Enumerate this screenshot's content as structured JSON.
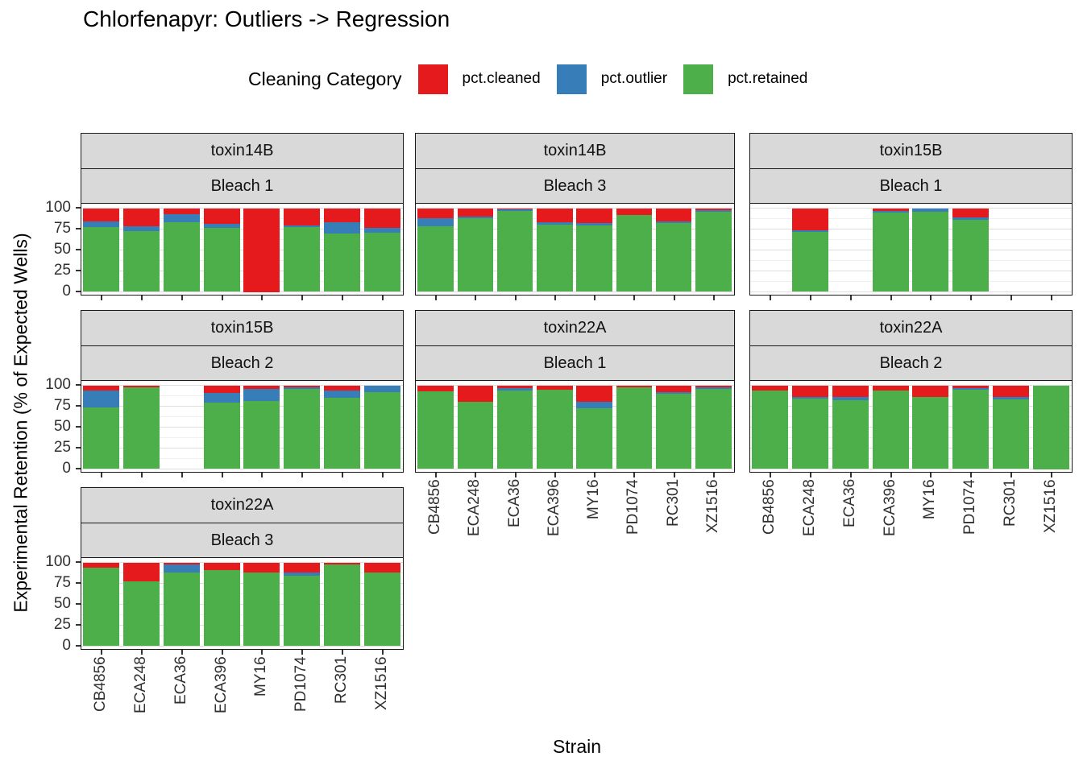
{
  "title": "Chlorfenapyr: Outliers -> Regression",
  "legend": {
    "title": "Cleaning Category",
    "items": [
      {
        "label": "pct.cleaned",
        "color": "#E41A1C",
        "key": "cleaned"
      },
      {
        "label": "pct.outlier",
        "color": "#377EB8",
        "key": "outlier"
      },
      {
        "label": "pct.retained",
        "color": "#4DAF4A",
        "key": "retained"
      }
    ]
  },
  "axes": {
    "x_title": "Strain",
    "y_title": "Experimental Retention (% of Expected Wells)",
    "y_ticks": [
      100,
      75,
      50,
      25,
      0
    ],
    "y_range": [
      0,
      100
    ]
  },
  "chart_data": {
    "type": "bar",
    "stacked": true,
    "legend_position": "top",
    "grid": true,
    "categories": [
      "CB4856",
      "ECA248",
      "ECA36",
      "ECA396",
      "MY16",
      "PD1074",
      "RC301",
      "XZ1516"
    ],
    "facets": [
      {
        "toxin": "toxin14B",
        "bleach": "Bleach 1",
        "row": 0,
        "col": 0,
        "show_y_axis": true,
        "show_x_axis": false,
        "values": [
          {
            "cleaned": 16,
            "outlier": 7,
            "retained": 77
          },
          {
            "cleaned": 22,
            "outlier": 5,
            "retained": 73
          },
          {
            "cleaned": 7,
            "outlier": 10,
            "retained": 83
          },
          {
            "cleaned": 19,
            "outlier": 5,
            "retained": 76
          },
          {
            "cleaned": 100,
            "outlier": 0,
            "retained": 0
          },
          {
            "cleaned": 21,
            "outlier": 2,
            "retained": 77
          },
          {
            "cleaned": 17,
            "outlier": 13,
            "retained": 70
          },
          {
            "cleaned": 24,
            "outlier": 5,
            "retained": 71
          }
        ]
      },
      {
        "toxin": "toxin14B",
        "bleach": "Bleach 3",
        "row": 0,
        "col": 1,
        "show_y_axis": false,
        "show_x_axis": false,
        "values": [
          {
            "cleaned": 12,
            "outlier": 10,
            "retained": 78
          },
          {
            "cleaned": 10,
            "outlier": 2,
            "retained": 88
          },
          {
            "cleaned": 1,
            "outlier": 2,
            "retained": 97
          },
          {
            "cleaned": 17,
            "outlier": 3,
            "retained": 80
          },
          {
            "cleaned": 18,
            "outlier": 3,
            "retained": 79
          },
          {
            "cleaned": 8,
            "outlier": 0,
            "retained": 92
          },
          {
            "cleaned": 16,
            "outlier": 2,
            "retained": 82
          },
          {
            "cleaned": 2,
            "outlier": 2,
            "retained": 96
          }
        ]
      },
      {
        "toxin": "toxin15B",
        "bleach": "Bleach 1",
        "row": 0,
        "col": 2,
        "show_y_axis": false,
        "show_x_axis": false,
        "values": [
          null,
          {
            "cleaned": 26,
            "outlier": 2,
            "retained": 72
          },
          null,
          {
            "cleaned": 3,
            "outlier": 2,
            "retained": 95
          },
          {
            "cleaned": 0,
            "outlier": 4,
            "retained": 96
          },
          {
            "cleaned": 11,
            "outlier": 3,
            "retained": 86
          },
          null,
          null
        ]
      },
      {
        "toxin": "toxin15B",
        "bleach": "Bleach 2",
        "row": 1,
        "col": 0,
        "show_y_axis": true,
        "show_x_axis": false,
        "values": [
          {
            "cleaned": 6,
            "outlier": 20,
            "retained": 74
          },
          {
            "cleaned": 2,
            "outlier": 0,
            "retained": 98
          },
          null,
          {
            "cleaned": 9,
            "outlier": 12,
            "retained": 79
          },
          {
            "cleaned": 4,
            "outlier": 15,
            "retained": 81
          },
          {
            "cleaned": 2,
            "outlier": 2,
            "retained": 96
          },
          {
            "cleaned": 6,
            "outlier": 9,
            "retained": 85
          },
          {
            "cleaned": 0,
            "outlier": 8,
            "retained": 92
          }
        ]
      },
      {
        "toxin": "toxin22A",
        "bleach": "Bleach 1",
        "row": 1,
        "col": 1,
        "show_y_axis": false,
        "show_x_axis": true,
        "values": [
          {
            "cleaned": 7,
            "outlier": 0,
            "retained": 93
          },
          {
            "cleaned": 20,
            "outlier": 0,
            "retained": 80
          },
          {
            "cleaned": 3,
            "outlier": 3,
            "retained": 94
          },
          {
            "cleaned": 5,
            "outlier": 0,
            "retained": 95
          },
          {
            "cleaned": 20,
            "outlier": 7,
            "retained": 73
          },
          {
            "cleaned": 2,
            "outlier": 0,
            "retained": 98
          },
          {
            "cleaned": 8,
            "outlier": 2,
            "retained": 90
          },
          {
            "cleaned": 2,
            "outlier": 2,
            "retained": 96
          }
        ]
      },
      {
        "toxin": "toxin22A",
        "bleach": "Bleach 2",
        "row": 1,
        "col": 2,
        "show_y_axis": false,
        "show_x_axis": true,
        "values": [
          {
            "cleaned": 6,
            "outlier": 0,
            "retained": 94
          },
          {
            "cleaned": 14,
            "outlier": 2,
            "retained": 84
          },
          {
            "cleaned": 14,
            "outlier": 4,
            "retained": 82
          },
          {
            "cleaned": 6,
            "outlier": 0,
            "retained": 94
          },
          {
            "cleaned": 14,
            "outlier": 0,
            "retained": 86
          },
          {
            "cleaned": 3,
            "outlier": 2,
            "retained": 95
          },
          {
            "cleaned": 14,
            "outlier": 3,
            "retained": 83
          },
          {
            "cleaned": 0,
            "outlier": 0,
            "retained": 100
          }
        ]
      },
      {
        "toxin": "toxin22A",
        "bleach": "Bleach 3",
        "row": 2,
        "col": 0,
        "show_y_axis": true,
        "show_x_axis": true,
        "values": [
          {
            "cleaned": 6,
            "outlier": 0,
            "retained": 94
          },
          {
            "cleaned": 23,
            "outlier": 0,
            "retained": 77
          },
          {
            "cleaned": 2,
            "outlier": 10,
            "retained": 88
          },
          {
            "cleaned": 9,
            "outlier": 0,
            "retained": 91
          },
          {
            "cleaned": 12,
            "outlier": 0,
            "retained": 88
          },
          {
            "cleaned": 12,
            "outlier": 4,
            "retained": 84
          },
          {
            "cleaned": 2,
            "outlier": 0,
            "retained": 98
          },
          {
            "cleaned": 12,
            "outlier": 0,
            "retained": 88
          }
        ]
      }
    ]
  }
}
